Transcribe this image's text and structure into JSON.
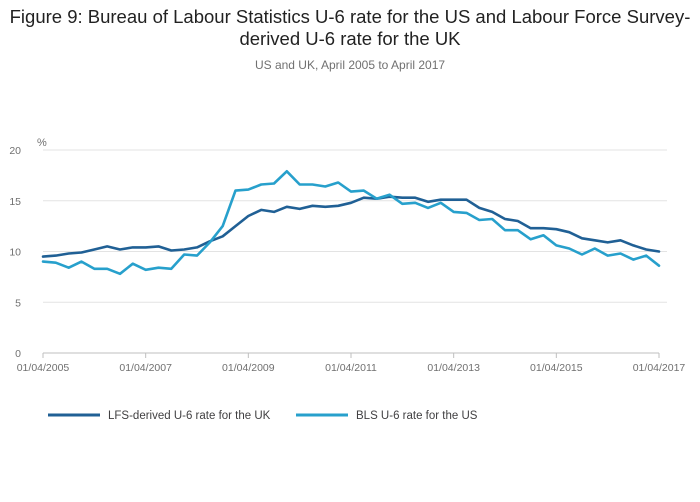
{
  "chart_data": {
    "type": "line",
    "title": "Figure 9: Bureau of Labour Statistics U-6 rate for the US and Labour Force Survey-derived U-6 rate for the UK",
    "subtitle": "US and UK, April 2005 to April 2017",
    "ylabel": "%",
    "xlabel": "",
    "ylim": [
      0,
      20
    ],
    "yticks": [
      0,
      5,
      10,
      15,
      20
    ],
    "xlim": [
      "2005-04-01",
      "2017-04-01"
    ],
    "xticks": [
      "01/04/2005",
      "01/04/2007",
      "01/04/2009",
      "01/04/2011",
      "01/04/2013",
      "01/04/2015",
      "01/04/2017"
    ],
    "grid": true,
    "legend_position": "bottom",
    "x": [
      "2005-04",
      "2005-07",
      "2005-10",
      "2006-01",
      "2006-04",
      "2006-07",
      "2006-10",
      "2007-01",
      "2007-04",
      "2007-07",
      "2007-10",
      "2008-01",
      "2008-04",
      "2008-07",
      "2008-10",
      "2009-01",
      "2009-04",
      "2009-07",
      "2009-10",
      "2010-01",
      "2010-04",
      "2010-07",
      "2010-10",
      "2011-01",
      "2011-04",
      "2011-07",
      "2011-10",
      "2012-01",
      "2012-04",
      "2012-07",
      "2012-10",
      "2013-01",
      "2013-04",
      "2013-07",
      "2013-10",
      "2014-01",
      "2014-04",
      "2014-07",
      "2014-10",
      "2015-01",
      "2015-04",
      "2015-07",
      "2015-10",
      "2016-01",
      "2016-04",
      "2016-07",
      "2016-10",
      "2017-01",
      "2017-04"
    ],
    "series": [
      {
        "name": "LFS-derived U-6 rate for the UK",
        "color": "#206095",
        "values": [
          9.5,
          9.6,
          9.8,
          9.9,
          10.2,
          10.5,
          10.2,
          10.4,
          10.4,
          10.5,
          10.1,
          10.2,
          10.4,
          11.0,
          11.5,
          12.5,
          13.5,
          14.1,
          13.9,
          14.4,
          14.2,
          14.5,
          14.4,
          14.5,
          14.8,
          15.3,
          15.2,
          15.4,
          15.3,
          15.3,
          14.9,
          15.1,
          15.1,
          15.1,
          14.3,
          13.9,
          13.2,
          13.0,
          12.3,
          12.3,
          12.2,
          11.9,
          11.3,
          11.1,
          10.9,
          11.1,
          10.6,
          10.2,
          10.0
        ]
      },
      {
        "name": "BLS U-6 rate for the US",
        "color": "#27a0cc",
        "values": [
          9.0,
          8.9,
          8.4,
          9.0,
          8.3,
          8.3,
          7.8,
          8.8,
          8.2,
          8.4,
          8.3,
          9.7,
          9.6,
          10.9,
          12.5,
          16.0,
          16.1,
          16.6,
          16.7,
          17.9,
          16.6,
          16.6,
          16.4,
          16.8,
          15.9,
          16.0,
          15.2,
          15.6,
          14.7,
          14.8,
          14.3,
          14.8,
          13.9,
          13.8,
          13.1,
          13.2,
          12.1,
          12.1,
          11.2,
          11.6,
          10.6,
          10.3,
          9.7,
          10.3,
          9.6,
          9.8,
          9.2,
          9.6,
          8.6
        ]
      }
    ]
  }
}
